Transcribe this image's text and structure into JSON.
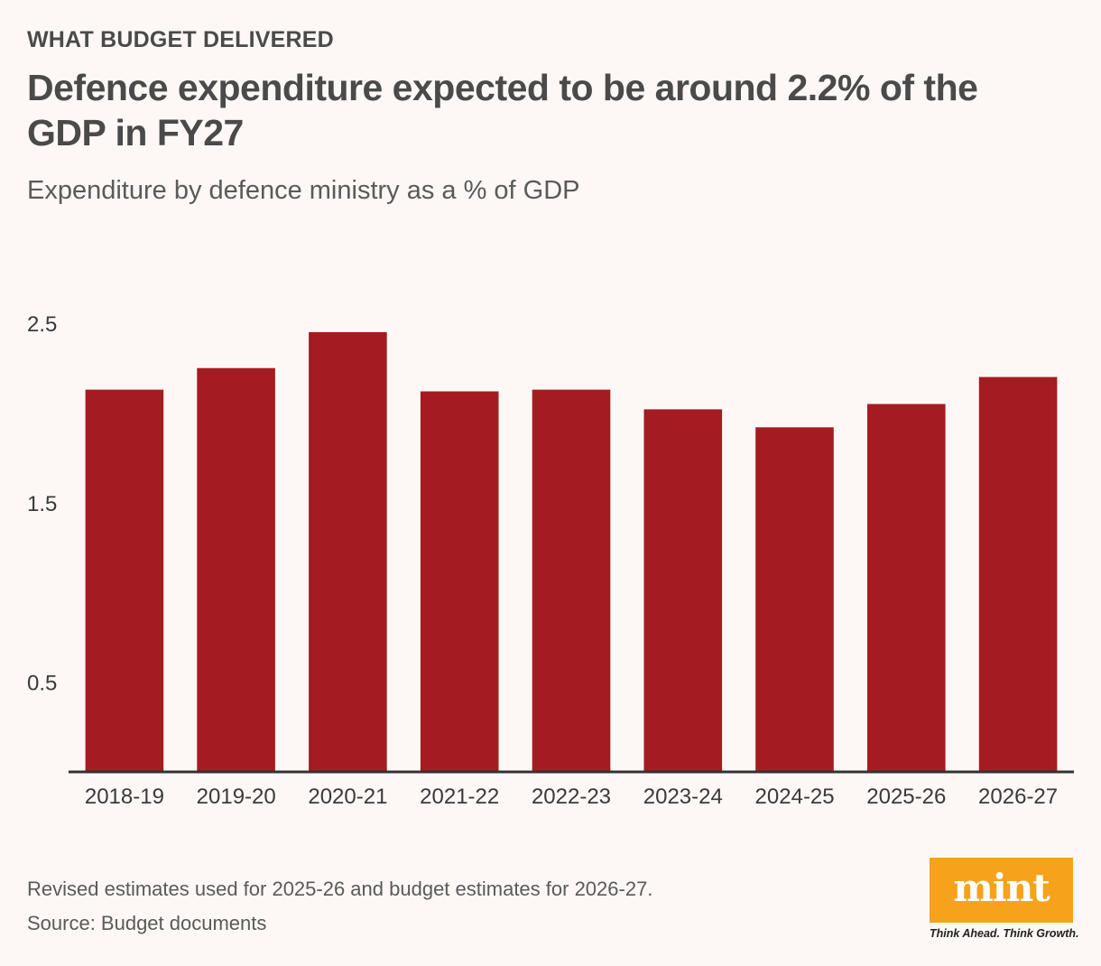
{
  "header": {
    "kicker": "WHAT BUDGET DELIVERED",
    "title": "Defence expenditure expected to be around 2.2% of the GDP in FY27",
    "subtitle": "Expenditure by defence ministry as a % of GDP"
  },
  "chart_data": {
    "type": "bar",
    "title": "Defence expenditure expected to be around 2.2% of the GDP in FY27",
    "subtitle": "Expenditure by defence ministry as a % of GDP",
    "xlabel": "",
    "ylabel": "",
    "categories": [
      "2018-19",
      "2019-20",
      "2020-21",
      "2021-22",
      "2022-23",
      "2023-24",
      "2024-25",
      "2025-26",
      "2026-27"
    ],
    "values": [
      2.13,
      2.25,
      2.45,
      2.12,
      2.13,
      2.02,
      1.92,
      2.05,
      2.2
    ],
    "yticks": [
      {
        "value": 2.5,
        "label": "2.5"
      },
      {
        "value": 1.5,
        "label": "1.5"
      },
      {
        "value": 0.5,
        "label": "0.5"
      }
    ],
    "ylim": [
      0,
      2.5
    ],
    "grid": false,
    "bar_color": "#a41c22",
    "axis_color": "#333333"
  },
  "footer": {
    "note": "Revised estimates used for 2025-26 and budget estimates for 2026-27.",
    "source": "Source: Budget documents"
  },
  "logo": {
    "word": "mint",
    "tagline": "Think Ahead. Think Growth.",
    "color": "#f7a21b"
  }
}
